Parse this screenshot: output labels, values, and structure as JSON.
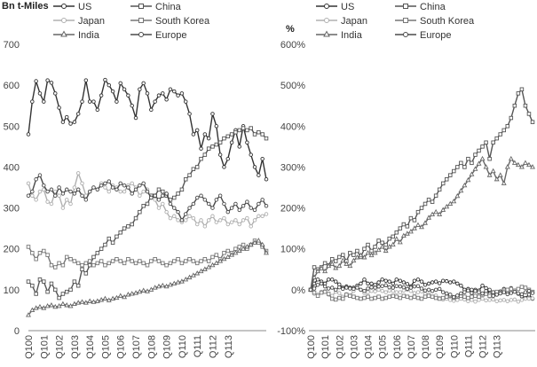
{
  "chart_data": [
    {
      "type": "line",
      "title": "",
      "ylabel": "Bn t-Miles",
      "xlabel": "",
      "ylim": [
        0,
        700
      ],
      "yticks": [
        "0",
        "100",
        "200",
        "300",
        "400",
        "500",
        "600",
        "700"
      ],
      "ytick_values": [
        0,
        100,
        200,
        300,
        400,
        500,
        600,
        700
      ],
      "x_tick_labels": [
        "Q100",
        "Q101",
        "Q102",
        "Q103",
        "Q104",
        "Q105",
        "Q106",
        "Q107",
        "Q108",
        "Q109",
        "Q110",
        "Q111",
        "Q112",
        "Q113"
      ],
      "series": [
        {
          "name": "US",
          "color": "#333333",
          "marker": "circle",
          "values": [
            480,
            560,
            610,
            580,
            560,
            612,
            606,
            580,
            545,
            510,
            522,
            506,
            510,
            530,
            560,
            612,
            560,
            560,
            540,
            575,
            613,
            600,
            585,
            560,
            605,
            590,
            575,
            550,
            520,
            590,
            605,
            580,
            540,
            560,
            575,
            580,
            565,
            590,
            585,
            575,
            580,
            560,
            530,
            480,
            490,
            445,
            480,
            470,
            530,
            500,
            430,
            400,
            420,
            460,
            490,
            450,
            500,
            460,
            430,
            400,
            380,
            420,
            370
          ]
        },
        {
          "name": "China",
          "color": "#555555",
          "marker": "square",
          "values": [
            120,
            110,
            90,
            125,
            120,
            95,
            115,
            100,
            80,
            90,
            95,
            100,
            120,
            110,
            150,
            140,
            160,
            180,
            190,
            200,
            210,
            225,
            215,
            230,
            240,
            250,
            255,
            260,
            275,
            290,
            305,
            310,
            330,
            330,
            345,
            340,
            330,
            320,
            325,
            335,
            345,
            370,
            380,
            395,
            400,
            420,
            430,
            445,
            450,
            455,
            460,
            470,
            475,
            480,
            485,
            490,
            495,
            490,
            495,
            480,
            485,
            480,
            470
          ]
        },
        {
          "name": "Japan",
          "color": "#b0b0b0",
          "marker": "circle",
          "values": [
            360,
            330,
            320,
            340,
            345,
            315,
            310,
            340,
            330,
            300,
            320,
            310,
            350,
            385,
            360,
            330,
            340,
            350,
            345,
            360,
            350,
            340,
            355,
            350,
            340,
            340,
            355,
            360,
            350,
            330,
            340,
            345,
            325,
            320,
            300,
            310,
            290,
            275,
            280,
            270,
            265,
            270,
            280,
            275,
            260,
            270,
            255,
            270,
            280,
            265,
            270,
            275,
            260,
            265,
            270,
            260,
            270,
            275,
            255,
            270,
            280,
            280,
            285
          ]
        },
        {
          "name": "South Korea",
          "color": "#777777",
          "marker": "square",
          "values": [
            205,
            190,
            175,
            190,
            195,
            185,
            160,
            155,
            165,
            160,
            180,
            175,
            170,
            165,
            160,
            165,
            170,
            160,
            165,
            170,
            160,
            165,
            170,
            175,
            170,
            165,
            175,
            170,
            165,
            170,
            165,
            160,
            170,
            175,
            170,
            165,
            160,
            165,
            170,
            175,
            165,
            170,
            175,
            170,
            165,
            170,
            175,
            170,
            180,
            185,
            175,
            190,
            195,
            190,
            200,
            205,
            210,
            200,
            210,
            220,
            215,
            205,
            195
          ]
        },
        {
          "name": "India",
          "color": "#666666",
          "marker": "triangle",
          "values": [
            38,
            50,
            55,
            58,
            55,
            60,
            62,
            58,
            60,
            65,
            62,
            60,
            65,
            68,
            70,
            68,
            72,
            70,
            72,
            75,
            78,
            74,
            78,
            80,
            85,
            82,
            88,
            90,
            92,
            95,
            98,
            96,
            100,
            105,
            108,
            110,
            108,
            112,
            115,
            118,
            120,
            125,
            130,
            135,
            140,
            145,
            150,
            155,
            160,
            165,
            170,
            175,
            180,
            185,
            190,
            195,
            200,
            205,
            210,
            215,
            220,
            210,
            190
          ]
        },
        {
          "name": "Europe",
          "color": "#4a4a4a",
          "marker": "circle",
          "values": [
            330,
            340,
            370,
            380,
            355,
            340,
            345,
            330,
            350,
            335,
            345,
            340,
            335,
            345,
            330,
            320,
            340,
            350,
            345,
            355,
            360,
            365,
            350,
            345,
            360,
            355,
            350,
            335,
            345,
            355,
            360,
            340,
            325,
            330,
            320,
            330,
            335,
            310,
            300,
            290,
            270,
            285,
            300,
            310,
            325,
            330,
            320,
            310,
            300,
            320,
            330,
            310,
            290,
            300,
            310,
            295,
            305,
            315,
            300,
            295,
            310,
            320,
            305
          ]
        }
      ]
    },
    {
      "type": "line",
      "title": "",
      "ylabel": "%",
      "xlabel": "",
      "ylim": [
        -100,
        600
      ],
      "yticks": [
        "-100%",
        "0%",
        "100%",
        "200%",
        "300%",
        "400%",
        "500%",
        "600%"
      ],
      "ytick_values": [
        -100,
        0,
        100,
        200,
        300,
        400,
        500,
        600
      ],
      "x_tick_labels": [
        "Q100",
        "Q101",
        "Q102",
        "Q103",
        "Q104",
        "Q105",
        "Q106",
        "Q107",
        "Q108",
        "Q109",
        "Q110",
        "Q111",
        "Q112",
        "Q113"
      ],
      "series": [
        {
          "name": "US",
          "color": "#333333",
          "marker": "circle",
          "values": [
            0,
            15,
            25,
            20,
            15,
            25,
            25,
            20,
            13,
            5,
            8,
            5,
            5,
            10,
            15,
            25,
            15,
            15,
            12,
            18,
            25,
            22,
            20,
            15,
            25,
            22,
            18,
            14,
            8,
            22,
            25,
            20,
            12,
            15,
            18,
            20,
            16,
            22,
            21,
            18,
            20,
            15,
            10,
            0,
            2,
            -8,
            0,
            -2,
            10,
            4,
            -10,
            -15,
            -12,
            -4,
            2,
            -6,
            4,
            -4,
            -10,
            -16,
            -20,
            -12,
            -22
          ]
        },
        {
          "name": "China",
          "color": "#555555",
          "marker": "square",
          "values": [
            0,
            55,
            50,
            55,
            65,
            60,
            75,
            70,
            80,
            85,
            70,
            90,
            85,
            95,
            80,
            100,
            110,
            95,
            105,
            120,
            115,
            110,
            125,
            130,
            140,
            150,
            160,
            155,
            175,
            170,
            190,
            200,
            210,
            220,
            215,
            230,
            245,
            260,
            270,
            280,
            290,
            300,
            310,
            300,
            320,
            310,
            330,
            340,
            350,
            360,
            320,
            360,
            370,
            380,
            390,
            400,
            420,
            450,
            480,
            490,
            450,
            430,
            410
          ]
        },
        {
          "name": "Japan",
          "color": "#b0b0b0",
          "marker": "circle",
          "values": [
            0,
            -10,
            -12,
            -5,
            -3,
            -12,
            -15,
            -5,
            -8,
            -17,
            -11,
            -14,
            -3,
            7,
            0,
            -8,
            -6,
            -3,
            -4,
            0,
            -3,
            -6,
            -2,
            -3,
            -6,
            -6,
            -2,
            0,
            -3,
            -8,
            -6,
            -4,
            -10,
            -11,
            -17,
            -14,
            -20,
            -24,
            -22,
            -25,
            -27,
            -25,
            -22,
            -24,
            -28,
            -25,
            -29,
            -25,
            -22,
            -26,
            -25,
            -24,
            -28,
            -26,
            -25,
            -28,
            -25,
            -24,
            -29,
            -25,
            -22,
            -22,
            -21
          ]
        },
        {
          "name": "South Korea",
          "color": "#777777",
          "marker": "square",
          "values": [
            0,
            -7,
            -15,
            -7,
            -5,
            -10,
            -22,
            -24,
            -20,
            -22,
            -12,
            -15,
            -17,
            -20,
            -22,
            -20,
            -17,
            -22,
            -20,
            -17,
            -22,
            -20,
            -17,
            -15,
            -17,
            -20,
            -15,
            -17,
            -20,
            -17,
            -20,
            -22,
            -17,
            -15,
            -17,
            -20,
            -22,
            -20,
            -17,
            -15,
            -20,
            -17,
            -15,
            -17,
            -20,
            -17,
            -15,
            -17,
            -12,
            -10,
            -15,
            -7,
            -5,
            -7,
            -2,
            0,
            2,
            -2,
            2,
            7,
            5,
            0,
            -5
          ]
        },
        {
          "name": "India",
          "color": "#666666",
          "marker": "triangle",
          "values": [
            0,
            30,
            45,
            52,
            45,
            58,
            63,
            53,
            58,
            71,
            63,
            58,
            71,
            79,
            84,
            79,
            90,
            84,
            90,
            97,
            105,
            95,
            105,
            110,
            124,
            116,
            132,
            137,
            142,
            150,
            158,
            153,
            163,
            176,
            184,
            190,
            184,
            195,
            203,
            210,
            216,
            229,
            242,
            255,
            268,
            282,
            295,
            308,
            320,
            300,
            280,
            290,
            270,
            280,
            260,
            300,
            320,
            310,
            305,
            300,
            310,
            305,
            300
          ]
        },
        {
          "name": "Europe",
          "color": "#4a4a4a",
          "marker": "circle",
          "values": [
            0,
            3,
            12,
            15,
            8,
            3,
            5,
            0,
            6,
            2,
            5,
            3,
            2,
            5,
            0,
            -3,
            3,
            6,
            5,
            8,
            9,
            11,
            6,
            5,
            9,
            8,
            6,
            2,
            5,
            8,
            9,
            3,
            -2,
            0,
            -3,
            0,
            2,
            -6,
            -9,
            -12,
            -18,
            -14,
            -9,
            -6,
            -2,
            0,
            -3,
            -6,
            -9,
            -3,
            0,
            -6,
            -12,
            -9,
            -6,
            -11,
            -8,
            -5,
            -9,
            -11,
            -6,
            -3,
            -8
          ]
        }
      ]
    }
  ],
  "legend": {
    "items": [
      {
        "label": "US",
        "marker": "circle"
      },
      {
        "label": "China",
        "marker": "square"
      },
      {
        "label": "Japan",
        "marker": "circle"
      },
      {
        "label": "South Korea",
        "marker": "square"
      },
      {
        "label": "India",
        "marker": "triangle"
      },
      {
        "label": "Europe",
        "marker": "circle"
      }
    ]
  }
}
